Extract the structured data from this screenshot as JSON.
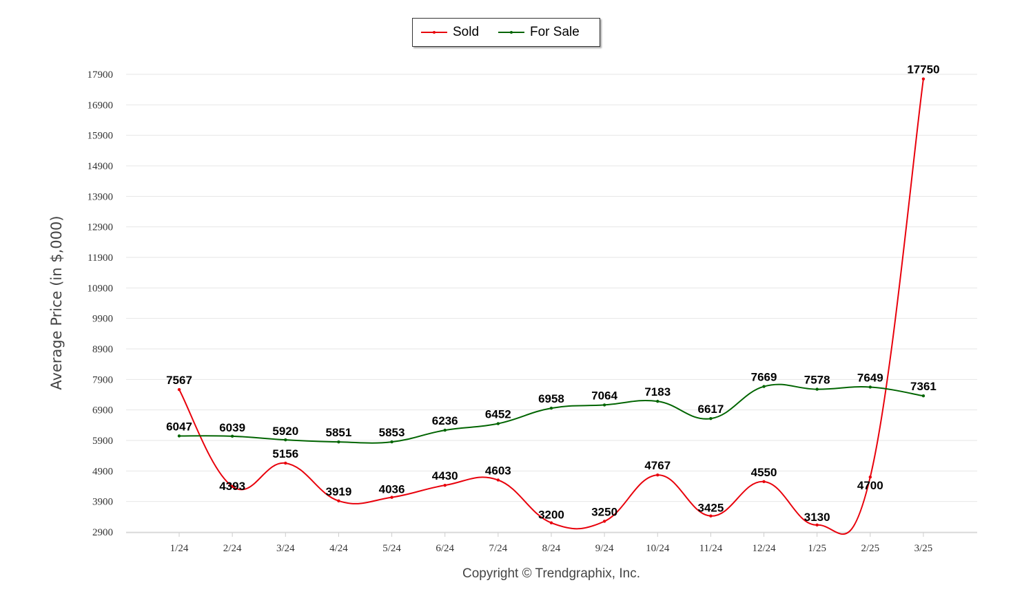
{
  "chart_data": {
    "type": "line",
    "categories": [
      "1/24",
      "2/24",
      "3/24",
      "4/24",
      "5/24",
      "6/24",
      "7/24",
      "8/24",
      "9/24",
      "10/24",
      "11/24",
      "12/24",
      "1/25",
      "2/25",
      "3/25"
    ],
    "series": [
      {
        "name": "Sold",
        "color": "#e8000b",
        "values": [
          7567,
          4393,
          5156,
          3919,
          4036,
          4430,
          4603,
          3200,
          3250,
          4767,
          3425,
          4550,
          3130,
          4700,
          17750
        ]
      },
      {
        "name": "For Sale",
        "color": "#006400",
        "values": [
          6047,
          6039,
          5920,
          5851,
          5853,
          6236,
          6452,
          6958,
          7064,
          7183,
          6617,
          7669,
          7578,
          7649,
          7361
        ]
      }
    ],
    "yticks": [
      2900,
      3900,
      4900,
      5900,
      6900,
      7900,
      8900,
      9900,
      10900,
      11900,
      12900,
      13900,
      14900,
      15900,
      16900,
      17900
    ],
    "ylim": [
      2900,
      17900
    ],
    "xlabel": "",
    "ylabel": "Average Price (in $,000)",
    "grid": true,
    "legend_position": "top-center"
  },
  "footer": {
    "copyright": "Copyright © Trendgraphix, Inc."
  }
}
